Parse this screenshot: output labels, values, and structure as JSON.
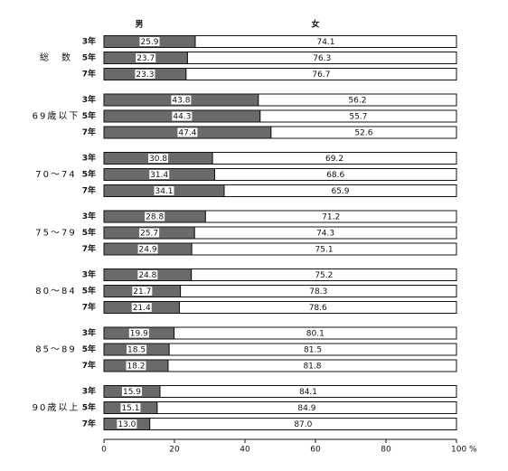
{
  "chart_data": {
    "type": "stacked-bar-horizontal",
    "groups": [
      "総　数",
      "69歳以下",
      "70～74",
      "75～79",
      "80～84",
      "85～89",
      "90歳以上"
    ],
    "categories": [
      "3年",
      "5年",
      "7年",
      "3年",
      "5年",
      "7年",
      "3年",
      "5年",
      "7年",
      "3年",
      "5年",
      "7年",
      "3年",
      "5年",
      "7年",
      "3年",
      "5年",
      "7年",
      "3年",
      "5年",
      "7年"
    ],
    "series": [
      {
        "name": "男",
        "color": "#6a6a6a",
        "values": [
          25.9,
          23.7,
          23.3,
          43.8,
          44.3,
          47.4,
          30.8,
          31.4,
          34.1,
          28.8,
          25.7,
          24.9,
          24.8,
          21.7,
          21.4,
          19.9,
          18.5,
          18.2,
          15.9,
          15.1,
          13.0
        ],
        "value_labels": [
          "25.9",
          "23.7",
          "23.3",
          "43.8",
          "44.3",
          "47.4",
          "30.8",
          "31.4",
          "34.1",
          "28.8",
          "25.7",
          "24.9",
          "24.8",
          "21.7",
          "21.4",
          "19.9",
          "18.5",
          "18.2",
          "15.9",
          "15.1",
          "13.0"
        ]
      },
      {
        "name": "女",
        "color": "#ffffff",
        "values": [
          74.1,
          76.3,
          76.7,
          56.2,
          55.7,
          52.6,
          69.2,
          68.6,
          65.9,
          71.2,
          74.3,
          75.1,
          75.2,
          78.3,
          78.6,
          80.1,
          81.5,
          81.8,
          84.1,
          84.9,
          87.0
        ],
        "value_labels": [
          "74.1",
          "76.3",
          "76.7",
          "56.2",
          "55.7",
          "52.6",
          "69.2",
          "68.6",
          "65.9",
          "71.2",
          "74.3",
          "75.1",
          "75.2",
          "78.3",
          "78.6",
          "80.1",
          "81.5",
          "81.8",
          "84.1",
          "84.9",
          "87.0"
        ]
      }
    ],
    "xlim": [
      0,
      100
    ],
    "xticks": [
      0,
      20,
      40,
      60,
      80,
      {
        "value": 100,
        "label": "100 %"
      }
    ]
  }
}
